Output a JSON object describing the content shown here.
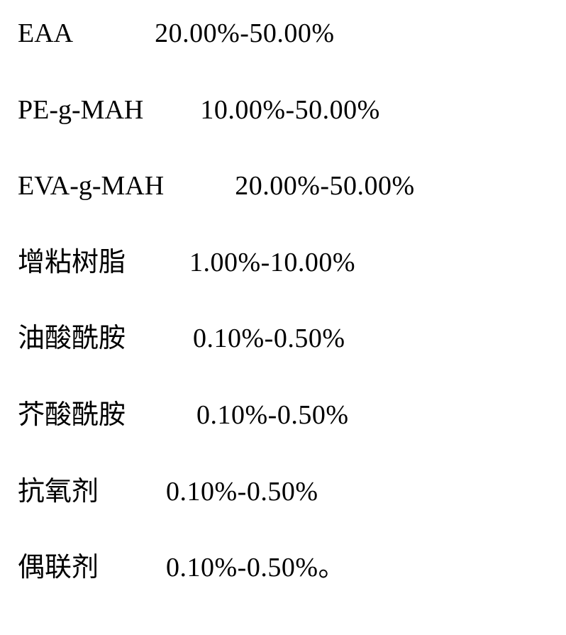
{
  "composition": {
    "background_color": "#ffffff",
    "text_color": "#000000",
    "font_size": 38,
    "line_spacing": 62,
    "rows": [
      {
        "name": "EAA",
        "range": "20.00%-50.00%",
        "gap_class": "gap-1"
      },
      {
        "name": "PE-g-MAH",
        "range": "10.00%-50.00%",
        "gap_class": "gap-2"
      },
      {
        "name": "EVA-g-MAH",
        "range": "20.00%-50.00%",
        "gap_class": "gap-3"
      },
      {
        "name": "增粘树脂",
        "range": "1.00%-10.00%",
        "gap_class": "gap-4"
      },
      {
        "name": "油酸酰胺",
        "range": "0.10%-0.50%",
        "gap_class": "gap-5"
      },
      {
        "name": "芥酸酰胺",
        "range": "0.10%-0.50%",
        "gap_class": "gap-6"
      },
      {
        "name": "抗氧剂",
        "range": "0.10%-0.50%",
        "gap_class": "gap-7"
      },
      {
        "name": "偶联剂",
        "range": "0.10%-0.50%。",
        "gap_class": "gap-8"
      }
    ]
  }
}
